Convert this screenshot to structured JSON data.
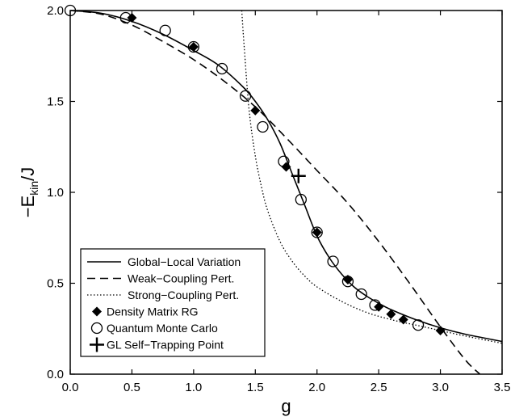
{
  "chart_data": {
    "type": "line",
    "xlabel": "g",
    "ylabel": {
      "prefix": "−E",
      "subscript": "kin",
      "suffix": "/J"
    },
    "xlim": [
      0.0,
      3.5
    ],
    "ylim": [
      0.0,
      2.0
    ],
    "xticks": [
      "0.0",
      "0.5",
      "1.0",
      "1.5",
      "2.0",
      "2.5",
      "3.0",
      "3.5"
    ],
    "yticks": [
      "0.0",
      "0.5",
      "1.0",
      "1.5",
      "2.0"
    ],
    "grid": false,
    "legend_position": "bottom-left",
    "series": [
      {
        "name": "Global−Local Variation",
        "style": "solid",
        "x": [
          0.0,
          0.25,
          0.5,
          0.75,
          1.0,
          1.2,
          1.4,
          1.5,
          1.6,
          1.7,
          1.8,
          1.9,
          2.0,
          2.1,
          2.2,
          2.3,
          2.4,
          2.5,
          2.6,
          2.8,
          3.0,
          3.2,
          3.5
        ],
        "y": [
          2.0,
          1.985,
          1.94,
          1.87,
          1.78,
          1.7,
          1.58,
          1.5,
          1.4,
          1.27,
          1.1,
          0.93,
          0.76,
          0.64,
          0.55,
          0.48,
          0.43,
          0.39,
          0.355,
          0.3,
          0.255,
          0.22,
          0.18
        ]
      },
      {
        "name": "Weak−Coupling Pert.",
        "style": "dashed",
        "x": [
          0.0,
          0.25,
          0.5,
          0.75,
          1.0,
          1.25,
          1.5,
          1.75,
          2.0,
          2.25,
          2.5,
          2.75,
          3.0,
          3.2,
          3.32
        ],
        "y": [
          2.0,
          1.98,
          1.92,
          1.83,
          1.73,
          1.61,
          1.47,
          1.3,
          1.12,
          0.94,
          0.73,
          0.5,
          0.26,
          0.08,
          0.0
        ]
      },
      {
        "name": "Strong−Coupling Pert.",
        "style": "dotted",
        "x": [
          1.39,
          1.41,
          1.45,
          1.5,
          1.55,
          1.6,
          1.7,
          1.8,
          1.9,
          2.0,
          2.2,
          2.4,
          2.6,
          2.8,
          3.0,
          3.2,
          3.5
        ],
        "y": [
          2.0,
          1.8,
          1.45,
          1.2,
          1.03,
          0.9,
          0.73,
          0.62,
          0.54,
          0.48,
          0.4,
          0.34,
          0.3,
          0.27,
          0.24,
          0.21,
          0.17
        ]
      },
      {
        "name": "Density Matrix RG",
        "marker": "diamond",
        "x": [
          0.5,
          1.0,
          1.5,
          1.75,
          2.0,
          2.25,
          2.5,
          2.6,
          2.7,
          3.0
        ],
        "y": [
          1.96,
          1.8,
          1.45,
          1.14,
          0.78,
          0.52,
          0.37,
          0.33,
          0.3,
          0.24
        ]
      },
      {
        "name": "Quantum Monte Carlo",
        "marker": "circle",
        "x": [
          0.0,
          0.45,
          0.77,
          1.0,
          1.23,
          1.42,
          1.56,
          1.73,
          1.87,
          2.0,
          2.13,
          2.25,
          2.36,
          2.47,
          2.82
        ],
        "y": [
          2.0,
          1.96,
          1.89,
          1.8,
          1.68,
          1.53,
          1.36,
          1.17,
          0.96,
          0.78,
          0.62,
          0.51,
          0.44,
          0.38,
          0.27
        ]
      },
      {
        "name": "GL Self−Trapping Point",
        "marker": "plus",
        "x": [
          1.85
        ],
        "y": [
          1.09
        ]
      }
    ]
  }
}
